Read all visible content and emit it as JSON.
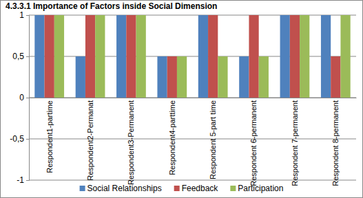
{
  "chart_data": {
    "type": "bar",
    "title": "4.3.3.1 Importance of Factors inside Social Dimension",
    "categories": [
      "Respondent1-partime",
      "Respondent2-Permanat",
      "Respondent3-Permanent",
      "Respondent4-parttime",
      "Respondent 5-part time",
      "Respondent 6-permanent",
      "Respondent 7-permanent",
      "Respondent 8-permanent"
    ],
    "series": [
      {
        "name": "Social Relationships",
        "color": "#4f81bd",
        "values": [
          1,
          0.5,
          1,
          0.5,
          1,
          0.5,
          1,
          1
        ]
      },
      {
        "name": "Feedback",
        "color": "#c0504d",
        "values": [
          1,
          1,
          1,
          0.5,
          1,
          1,
          1,
          0.5
        ]
      },
      {
        "name": "Participation",
        "color": "#9bbb59",
        "values": [
          1,
          1,
          1,
          0.5,
          0.5,
          0.5,
          1,
          1
        ]
      }
    ],
    "ylim": [
      -1,
      1
    ],
    "yticks": [
      -1,
      {
        "value": -0.5,
        "label": "-0,5"
      },
      0,
      {
        "value": 0.5,
        "label": "0,5"
      },
      1
    ],
    "grid": true,
    "legend": "bottom"
  }
}
